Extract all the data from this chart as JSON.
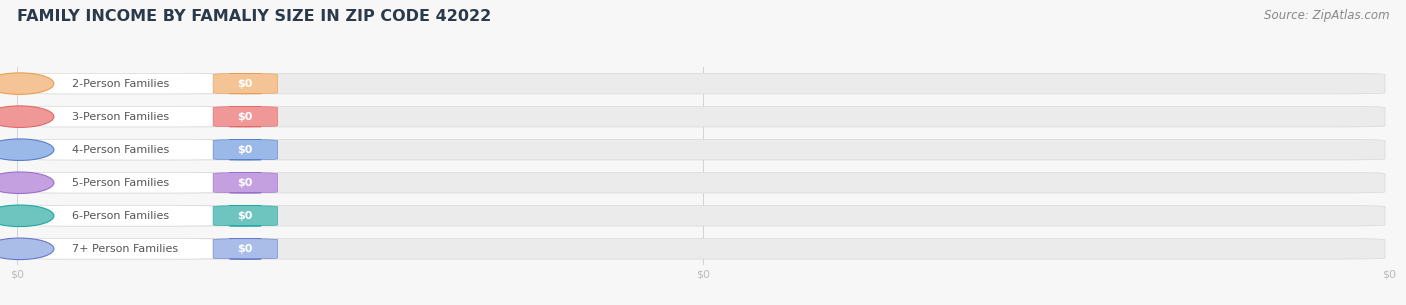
{
  "title": "FAMILY INCOME BY FAMALIY SIZE IN ZIP CODE 42022",
  "source": "Source: ZipAtlas.com",
  "categories": [
    "2-Person Families",
    "3-Person Families",
    "4-Person Families",
    "5-Person Families",
    "6-Person Families",
    "7+ Person Families"
  ],
  "values": [
    0,
    0,
    0,
    0,
    0,
    0
  ],
  "bar_colors": [
    "#f5c496",
    "#f09898",
    "#9ab8e8",
    "#c4a0e0",
    "#6ec4be",
    "#aabce8"
  ],
  "bar_edge_colors": [
    "#e8a050",
    "#e06868",
    "#5880c8",
    "#9870c8",
    "#20a8a0",
    "#6878c8"
  ],
  "bg_color": "#f7f7f7",
  "track_color": "#ebebeb",
  "track_edge_color": "#d8d8d8",
  "pill_bg_color": "#ffffff",
  "title_fontsize": 11.5,
  "source_fontsize": 8.5,
  "label_fontsize": 8.0,
  "value_fontsize": 8.0,
  "xtick_positions": [
    0.0,
    0.5,
    1.0
  ],
  "xtick_labels": [
    "$0",
    "$0",
    "$0"
  ]
}
